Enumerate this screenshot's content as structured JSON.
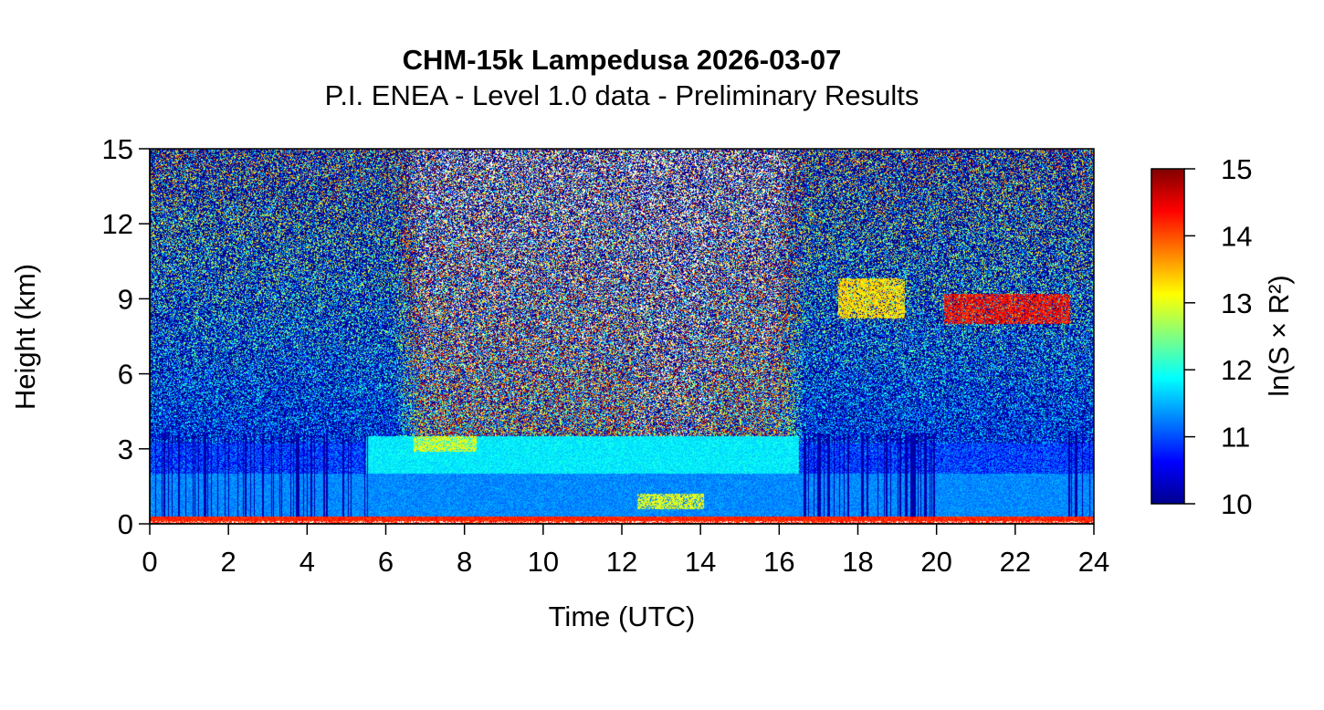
{
  "chart_data": {
    "type": "heatmap",
    "title": "CHM-15k Lampedusa 2026-03-07",
    "subtitle": "P.I. ENEA - Level 1.0 data - Preliminary Results",
    "xlabel": "Time (UTC)",
    "ylabel": "Height (km)",
    "xlim": [
      0,
      24
    ],
    "ylim": [
      0,
      15
    ],
    "xticks": [
      0,
      2,
      4,
      6,
      8,
      10,
      12,
      14,
      16,
      18,
      20,
      22,
      24
    ],
    "yticks": [
      0,
      3,
      6,
      9,
      12,
      15
    ],
    "colorbar": {
      "label": "ln(S × R²)",
      "range": [
        10,
        15
      ],
      "ticks": [
        10,
        11,
        12,
        13,
        14,
        15
      ],
      "colormap": [
        "#00008f",
        "#0000ff",
        "#0080ff",
        "#00ffff",
        "#80ff80",
        "#ffff00",
        "#ff8000",
        "#ff0000",
        "#800000"
      ]
    },
    "features": [
      {
        "name": "surface-layer",
        "t_start": 0,
        "t_end": 24,
        "z_bottom": 0.0,
        "z_top": 0.3,
        "value": 14.2
      },
      {
        "name": "boundary-layer",
        "t_start": 0,
        "t_end": 24,
        "z_bottom": 0.3,
        "z_top": 2.0,
        "value": 11.3
      },
      {
        "name": "aerosol-layer",
        "t_start": 5.5,
        "t_end": 16.5,
        "z_bottom": 0.3,
        "z_top": 3.5,
        "value": 11.8
      },
      {
        "name": "low-cloud",
        "t_start": 12.4,
        "t_end": 14.1,
        "z_bottom": 0.6,
        "z_top": 1.2,
        "value": 13.0
      },
      {
        "name": "thin-layer",
        "t_start": 6.7,
        "t_end": 8.3,
        "z_bottom": 2.9,
        "z_top": 3.5,
        "value": 13.0
      },
      {
        "name": "cirrus-1",
        "t_start": 17.5,
        "t_end": 19.2,
        "z_bottom": 8.2,
        "z_top": 9.8,
        "value": 13.3
      },
      {
        "name": "cirrus-2",
        "t_start": 20.2,
        "t_end": 23.4,
        "z_bottom": 8.0,
        "z_top": 9.2,
        "value": 14.3
      }
    ]
  }
}
